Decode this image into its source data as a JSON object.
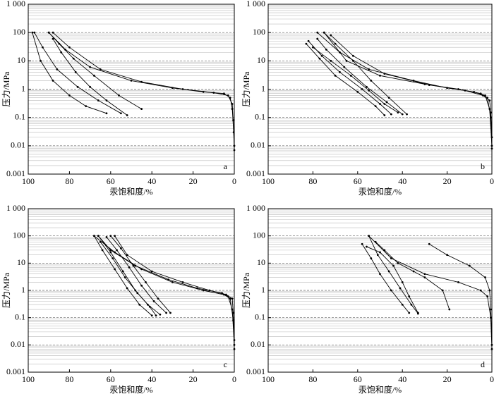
{
  "chart_data": [
    {
      "type": "line",
      "log_y": true,
      "grid": true,
      "minor_grid": true,
      "color": "#000000",
      "panel_label": "a",
      "xlabel": "汞饱和度/%",
      "ylabel": "压力/MPa",
      "xlim": [
        100,
        0
      ],
      "xticks": [
        100,
        80,
        60,
        40,
        20,
        0
      ],
      "ylim": [
        0.001,
        1000
      ],
      "yticks": [
        0.001,
        0.01,
        0.1,
        1,
        10,
        100,
        {
          "value": 1000,
          "label": "1 000"
        }
      ],
      "series": [
        {
          "color": "#000000",
          "x": [
            0,
            0.3,
            1,
            2,
            5,
            15,
            30,
            50,
            70,
            82,
            90
          ],
          "values": [
            0.007,
            0.03,
            0.2,
            0.5,
            0.7,
            0.8,
            1.1,
            2,
            6,
            25,
            100
          ]
        },
        {
          "color": "#000000",
          "x": [
            0,
            0.5,
            1,
            3,
            10,
            25,
            45,
            65,
            80,
            88
          ],
          "values": [
            0.01,
            0.08,
            0.3,
            0.6,
            0.75,
            1,
            1.8,
            5,
            30,
            100
          ]
        },
        {
          "color": "#000000",
          "x": [
            98,
            94,
            88,
            80,
            72,
            62
          ],
          "values": [
            100,
            10,
            2,
            0.6,
            0.25,
            0.14
          ]
        },
        {
          "color": "#000000",
          "x": [
            97,
            93,
            86,
            76,
            66,
            55
          ],
          "values": [
            100,
            30,
            5,
            1.2,
            0.4,
            0.14
          ]
        },
        {
          "color": "#000000",
          "x": [
            90,
            85,
            78,
            68,
            56,
            45
          ],
          "values": [
            100,
            40,
            12,
            3,
            0.6,
            0.2
          ]
        },
        {
          "color": "#000000",
          "x": [
            88,
            84,
            77,
            70,
            62,
            52
          ],
          "values": [
            60,
            20,
            4,
            1.2,
            0.4,
            0.12
          ]
        }
      ]
    },
    {
      "type": "line",
      "log_y": true,
      "grid": true,
      "minor_grid": true,
      "color": "#000000",
      "panel_label": "b",
      "xlabel": "汞饱和度/%",
      "ylabel": "压力/MPa",
      "xlim": [
        100,
        0
      ],
      "xticks": [
        100,
        80,
        60,
        40,
        20,
        0
      ],
      "ylim": [
        0.001,
        1000
      ],
      "yticks": [
        0.001,
        0.01,
        0.1,
        1,
        10,
        100,
        {
          "value": 1000,
          "label": "1 000"
        }
      ],
      "series": [
        {
          "color": "#000000",
          "x": [
            0,
            0.5,
            2,
            5,
            15,
            30,
            50,
            65,
            75
          ],
          "values": [
            0.008,
            0.1,
            0.5,
            0.7,
            1,
            1.5,
            3,
            10,
            100
          ]
        },
        {
          "color": "#000000",
          "x": [
            0,
            1,
            3,
            8,
            20,
            35,
            55,
            68,
            78
          ],
          "values": [
            0.01,
            0.2,
            0.6,
            0.8,
            1.1,
            2,
            5,
            20,
            100
          ]
        },
        {
          "color": "#000000",
          "x": [
            0,
            0.5,
            1,
            4,
            12,
            28,
            48,
            62,
            72
          ],
          "values": [
            0.02,
            0.15,
            0.4,
            0.6,
            0.9,
            1.4,
            3.5,
            15,
            80
          ]
        },
        {
          "color": "#000000",
          "x": [
            82,
            76,
            68,
            58,
            50,
            45
          ],
          "values": [
            50,
            15,
            4,
            1,
            0.3,
            0.13
          ]
        },
        {
          "color": "#000000",
          "x": [
            78,
            74,
            66,
            56,
            47,
            40
          ],
          "values": [
            60,
            25,
            6,
            1.2,
            0.35,
            0.13
          ]
        },
        {
          "color": "#000000",
          "x": [
            80,
            72,
            63,
            55,
            48,
            42
          ],
          "values": [
            30,
            10,
            3,
            0.9,
            0.3,
            0.15
          ]
        },
        {
          "color": "#000000",
          "x": [
            75,
            70,
            62,
            54,
            46,
            38
          ],
          "values": [
            100,
            40,
            10,
            2,
            0.5,
            0.13
          ]
        },
        {
          "color": "#000000",
          "x": [
            83,
            77,
            70,
            60,
            52,
            48
          ],
          "values": [
            40,
            12,
            3,
            0.8,
            0.25,
            0.12
          ]
        }
      ]
    },
    {
      "type": "line",
      "log_y": true,
      "grid": true,
      "minor_grid": true,
      "color": "#000000",
      "panel_label": "c",
      "xlabel": "汞饱和度/%",
      "ylabel": "压力/MPa",
      "xlim": [
        100,
        0
      ],
      "xticks": [
        100,
        80,
        60,
        40,
        20,
        0
      ],
      "ylim": [
        0.001,
        1000
      ],
      "yticks": [
        0.001,
        0.01,
        0.1,
        1,
        10,
        100,
        {
          "value": 1000,
          "label": "1 000"
        }
      ],
      "series": [
        {
          "color": "#000000",
          "x": [
            0,
            0.5,
            2,
            5,
            15,
            30,
            45,
            58,
            68
          ],
          "values": [
            0.007,
            0.08,
            0.5,
            0.7,
            1,
            2,
            6,
            25,
            100
          ]
        },
        {
          "color": "#000000",
          "x": [
            0,
            1,
            3,
            6,
            18,
            32,
            48,
            60,
            66
          ],
          "values": [
            0.01,
            0.2,
            0.6,
            0.8,
            1.2,
            2.5,
            8,
            30,
            100
          ]
        },
        {
          "color": "#000000",
          "x": [
            0,
            0.5,
            1,
            4,
            12,
            25,
            40,
            52,
            58
          ],
          "values": [
            0.015,
            0.15,
            0.5,
            0.7,
            1,
            2,
            5,
            20,
            100
          ]
        },
        {
          "color": "#000000",
          "x": [
            68,
            64,
            58,
            52,
            46,
            40
          ],
          "values": [
            100,
            30,
            6,
            1.2,
            0.3,
            0.12
          ]
        },
        {
          "color": "#000000",
          "x": [
            66,
            60,
            54,
            48,
            42,
            36
          ],
          "values": [
            100,
            25,
            5,
            1,
            0.3,
            0.13
          ]
        },
        {
          "color": "#000000",
          "x": [
            62,
            57,
            51,
            45,
            39,
            33
          ],
          "values": [
            90,
            30,
            7,
            1.5,
            0.4,
            0.15
          ]
        },
        {
          "color": "#000000",
          "x": [
            65,
            59,
            53,
            47,
            41,
            38
          ],
          "values": [
            60,
            15,
            3,
            0.8,
            0.25,
            0.12
          ]
        },
        {
          "color": "#000000",
          "x": [
            60,
            55,
            49,
            43,
            37,
            31
          ],
          "values": [
            100,
            35,
            8,
            2,
            0.5,
            0.15
          ]
        }
      ]
    },
    {
      "type": "line",
      "log_y": true,
      "grid": true,
      "minor_grid": true,
      "color": "#000000",
      "panel_label": "d",
      "xlabel": "汞饱和度/%",
      "ylabel": "压力/MPa",
      "xlim": [
        100,
        0
      ],
      "xticks": [
        100,
        80,
        60,
        40,
        20,
        0
      ],
      "ylim": [
        0.001,
        1000
      ],
      "yticks": [
        0.001,
        0.01,
        0.1,
        1,
        10,
        100,
        {
          "value": 1000,
          "label": "1 000"
        }
      ],
      "series": [
        {
          "color": "#000000",
          "x": [
            0,
            0.5,
            2,
            5,
            15,
            30,
            45,
            55
          ],
          "values": [
            0.007,
            0.1,
            0.6,
            1,
            2,
            4,
            15,
            100
          ]
        },
        {
          "color": "#000000",
          "x": [
            0,
            0.5,
            1,
            3,
            10,
            20,
            28
          ],
          "values": [
            0.01,
            0.2,
            1,
            3,
            8,
            20,
            50
          ]
        },
        {
          "color": "#000000",
          "x": [
            58,
            54,
            50,
            45,
            40,
            37
          ],
          "values": [
            50,
            15,
            4,
            1,
            0.3,
            0.15
          ]
        },
        {
          "color": "#000000",
          "x": [
            55,
            51,
            46,
            41,
            36,
            33
          ],
          "values": [
            100,
            20,
            5,
            1.2,
            0.3,
            0.14
          ]
        },
        {
          "color": "#000000",
          "x": [
            52,
            48,
            42,
            35,
            30,
            22,
            19
          ],
          "values": [
            60,
            30,
            10,
            5,
            3,
            1,
            0.2
          ]
        },
        {
          "color": "#000000",
          "x": [
            56,
            50,
            44,
            40,
            37,
            33
          ],
          "values": [
            40,
            25,
            8,
            2,
            0.6,
            0.15
          ]
        }
      ]
    }
  ]
}
